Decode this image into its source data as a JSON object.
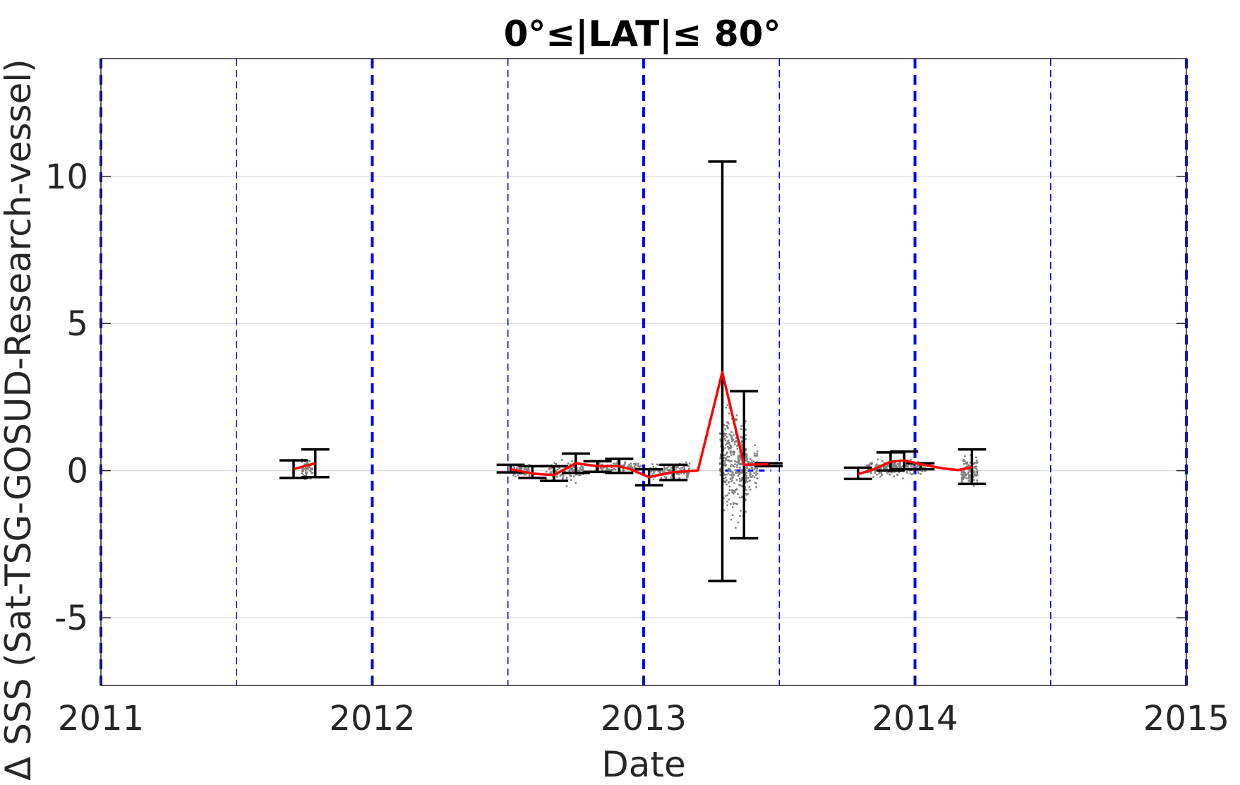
{
  "chart_data": {
    "type": "scatter",
    "title": "0°≤|LAT|≤ 80°",
    "xlabel": "Date",
    "ylabel": "Δ SSS (Sat-TSG-GOSUD-Research-vessel)",
    "xlim": [
      2011,
      2015
    ],
    "ylim": [
      -7.3,
      14
    ],
    "x_ticks": [
      "2011",
      "2012",
      "2013",
      "2014",
      "2015"
    ],
    "y_ticks": [
      "-5",
      "0",
      "5",
      "10"
    ],
    "y_tick_values": [
      -5,
      0,
      5,
      10
    ],
    "grid": "horizontal",
    "year_lines": [
      2011,
      2012,
      2013,
      2014,
      2015
    ],
    "half_year_lines": [
      2011.5,
      2012.5,
      2013.5,
      2014.5
    ],
    "errorbars": [
      {
        "x": 2011.71,
        "low": -0.25,
        "high": 0.35
      },
      {
        "x": 2011.79,
        "low": -0.22,
        "high": 0.72
      },
      {
        "x": 2012.51,
        "low": -0.06,
        "high": 0.2
      },
      {
        "x": 2012.59,
        "low": -0.25,
        "high": 0.15
      },
      {
        "x": 2012.67,
        "low": -0.35,
        "high": 0.15
      },
      {
        "x": 2012.75,
        "low": -0.08,
        "high": 0.58
      },
      {
        "x": 2012.83,
        "low": -0.04,
        "high": 0.32
      },
      {
        "x": 2012.91,
        "low": -0.08,
        "high": 0.4
      },
      {
        "x": 2013.02,
        "low": -0.5,
        "high": 0.05
      },
      {
        "x": 2013.11,
        "low": -0.32,
        "high": 0.2
      },
      {
        "x": 2013.29,
        "low": -3.75,
        "high": 10.5
      },
      {
        "x": 2013.37,
        "low": -2.3,
        "high": 2.7
      },
      {
        "x": 2013.46,
        "low": 0.15,
        "high": 0.25
      },
      {
        "x": 2013.79,
        "low": -0.28,
        "high": 0.1
      },
      {
        "x": 2013.91,
        "low": 0.0,
        "high": 0.62
      },
      {
        "x": 2013.96,
        "low": 0.05,
        "high": 0.65
      },
      {
        "x": 2014.02,
        "low": 0.05,
        "high": 0.25
      },
      {
        "x": 2014.21,
        "low": -0.45,
        "high": 0.72
      }
    ],
    "series": [
      {
        "color": "#ff0000",
        "x": [
          2011.71,
          2011.79
        ],
        "y": [
          0.05,
          0.25
        ]
      },
      {
        "color": "#ff0000",
        "x": [
          2012.51,
          2012.59,
          2012.67,
          2012.75,
          2012.83,
          2012.91,
          2012.95,
          2013.02,
          2013.11,
          2013.2,
          2013.29,
          2013.37,
          2013.46
        ],
        "y": [
          0.05,
          -0.1,
          -0.15,
          0.25,
          0.15,
          0.15,
          0.05,
          -0.22,
          -0.05,
          0.0,
          3.35,
          0.2,
          0.22
        ]
      },
      {
        "color": "#ff0000",
        "x": [
          2013.79,
          2013.85,
          2013.91,
          2013.96,
          2014.02,
          2014.1,
          2014.16,
          2014.21
        ],
        "y": [
          -0.12,
          0.05,
          0.3,
          0.35,
          0.22,
          0.08,
          0.02,
          0.12
        ]
      }
    ],
    "colors": {
      "axes": "#262626",
      "grid": "#e0e0e0",
      "year_lines": "#0000ff",
      "scatter": "#808080",
      "mean_line": "#ff0000",
      "errorbars": "#000000"
    }
  }
}
